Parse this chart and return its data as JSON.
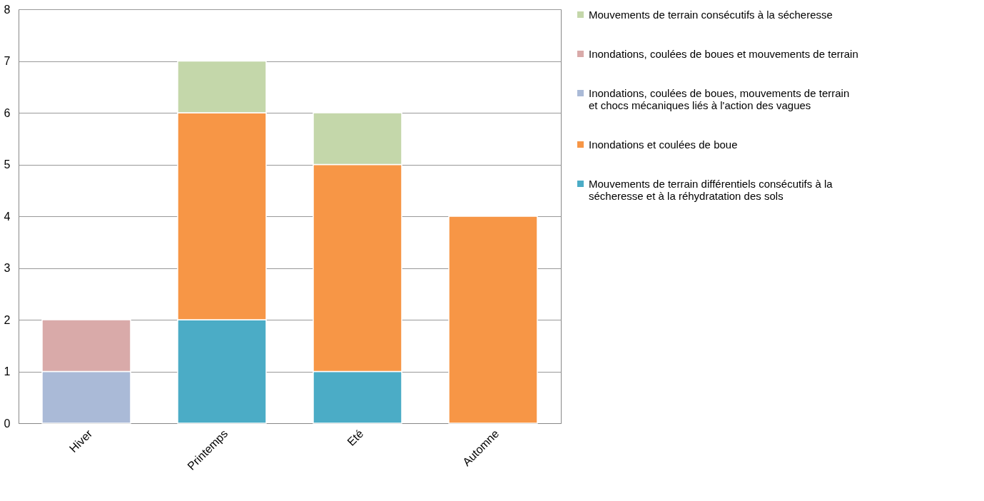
{
  "chart_data": {
    "type": "bar",
    "stacked": true,
    "categories": [
      "Hiver",
      "Printemps",
      "Eté",
      "Automne"
    ],
    "series": [
      {
        "name": "Mouvements de terrain différentiels consécutifs à la sécheresse et à la réhydratation des sols",
        "color": "#4bacc6",
        "values": [
          null,
          2,
          1,
          null
        ]
      },
      {
        "name": "Inondations et coulées de boue",
        "color": "#f79646",
        "values": [
          null,
          4,
          4,
          4
        ]
      },
      {
        "name": "Inondations, coulées de boues, mouvements de terrain et chocs mécaniques liés à l'action des vagues",
        "color": "#aabad7",
        "values": [
          1,
          null,
          null,
          null
        ]
      },
      {
        "name": "Inondations, coulées de boues et mouvements de terrain",
        "color": "#d9aaa9",
        "values": [
          1,
          null,
          null,
          null
        ]
      },
      {
        "name": "Mouvements de terrain consécutifs à la sécheresse",
        "color": "#c4d7aa",
        "values": [
          null,
          1,
          1,
          null
        ]
      }
    ],
    "ylim": [
      0,
      8
    ],
    "yticks": [
      0,
      1,
      2,
      3,
      4,
      5,
      6,
      7,
      8
    ],
    "grid": "y",
    "legend": "right"
  }
}
